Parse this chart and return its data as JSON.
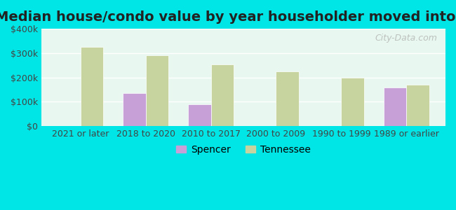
{
  "title": "Median house/condo value by year householder moved into unit",
  "categories": [
    "2021 or later",
    "2018 to 2020",
    "2010 to 2017",
    "2000 to 2009",
    "1990 to 1999",
    "1989 or earlier"
  ],
  "spencer_values": [
    null,
    135000,
    90000,
    null,
    null,
    160000
  ],
  "tennessee_values": [
    325000,
    290000,
    255000,
    225000,
    200000,
    170000
  ],
  "spencer_color": "#c8a0d8",
  "tennessee_color": "#c8d4a0",
  "background_outer": "#00e5e5",
  "background_inner_top": "#e8f8f0",
  "background_inner_bottom": "#f0f8e8",
  "ylim": [
    0,
    400000
  ],
  "yticks": [
    0,
    100000,
    200000,
    300000,
    400000
  ],
  "ytick_labels": [
    "$0",
    "$100k",
    "$200k",
    "$300k",
    "$400k"
  ],
  "bar_width": 0.35,
  "watermark_text": "City-Data.com",
  "legend_spencer": "Spencer",
  "legend_tennessee": "Tennessee",
  "title_fontsize": 14,
  "tick_fontsize": 9,
  "legend_fontsize": 10
}
